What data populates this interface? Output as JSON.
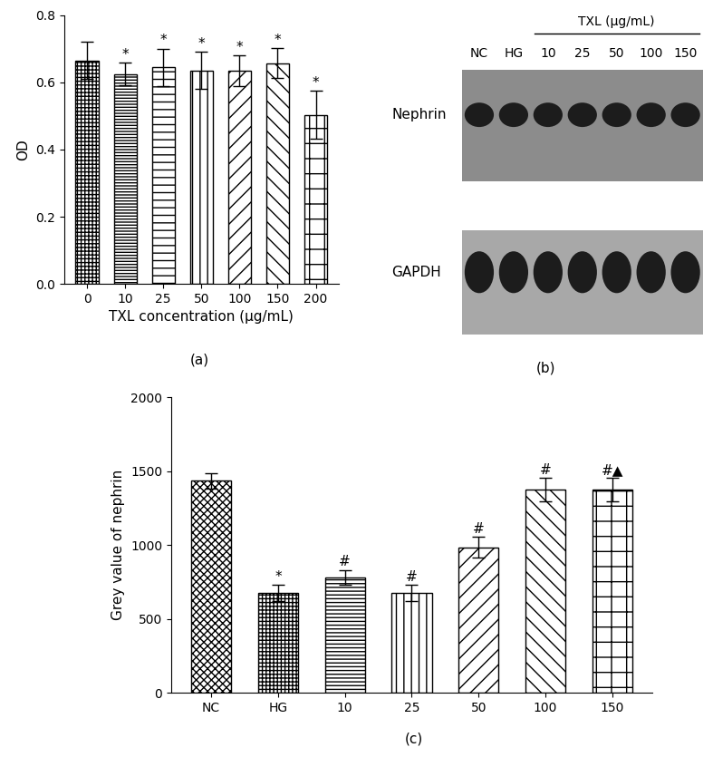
{
  "chart_data": [
    {
      "type": "bar",
      "caption": "(a)",
      "x_label": "TXL concentration (μg/mL)",
      "y_label": "OD",
      "categories": [
        "0",
        "10",
        "25",
        "50",
        "100",
        "150",
        "200"
      ],
      "values": [
        0.665,
        0.625,
        0.645,
        0.635,
        0.635,
        0.657,
        0.503
      ],
      "errors": [
        0.055,
        0.033,
        0.055,
        0.055,
        0.045,
        0.045,
        0.072
      ],
      "marks": [
        null,
        "*",
        "*",
        "*",
        "*",
        "*",
        "*"
      ],
      "ylim": [
        0,
        0.8
      ],
      "yticks": [
        {
          "value": 0,
          "label": "0.0"
        },
        {
          "value": 0.2,
          "label": "0.2"
        },
        {
          "value": 0.4,
          "label": "0.4"
        },
        {
          "value": 0.6,
          "label": "0.6"
        },
        {
          "value": 0.8,
          "label": "0.8"
        }
      ],
      "color": "#ffffff"
    },
    {
      "type": "bar",
      "caption": "(c)",
      "y_label": "Grey value of nephrin",
      "categories": [
        "NC",
        "HG",
        "10",
        "25",
        "50",
        "100",
        "150"
      ],
      "values": [
        1435,
        675,
        780,
        675,
        985,
        1375,
        1375
      ],
      "errors": [
        50,
        55,
        50,
        55,
        70,
        80,
        80
      ],
      "marks": [
        null,
        "*",
        "#",
        "#",
        "#",
        "#",
        "#▲"
      ],
      "ylim": [
        0,
        2000
      ],
      "yticks": [
        0,
        500,
        1000,
        1500,
        2000
      ],
      "color": "#ffffff"
    }
  ],
  "blot": {
    "caption": "(b)",
    "group_label": "TXL (μg/mL)",
    "lanes": [
      "NC",
      "HG",
      "10",
      "25",
      "50",
      "100",
      "150"
    ],
    "grouped": [
      false,
      false,
      true,
      true,
      true,
      true,
      true
    ],
    "rows": [
      "Nephrin",
      "GAPDH"
    ]
  }
}
